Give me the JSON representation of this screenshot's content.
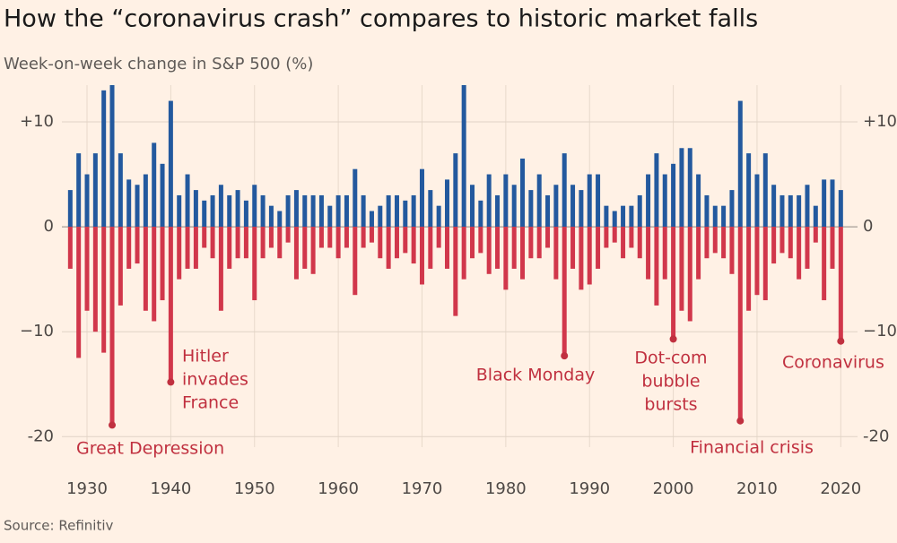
{
  "chart_data": {
    "type": "bar",
    "title": "How the “coronavirus crash” compares to historic market falls",
    "subtitle": "Week-on-week change in S&P 500 (%)",
    "source": "Source: Refinitiv",
    "x": [
      1928,
      1929,
      1930,
      1931,
      1932,
      1933,
      1934,
      1935,
      1936,
      1937,
      1938,
      1939,
      1940,
      1941,
      1942,
      1943,
      1944,
      1945,
      1946,
      1947,
      1948,
      1949,
      1950,
      1951,
      1952,
      1953,
      1954,
      1955,
      1956,
      1957,
      1958,
      1959,
      1960,
      1961,
      1962,
      1963,
      1964,
      1965,
      1966,
      1967,
      1968,
      1969,
      1970,
      1971,
      1972,
      1973,
      1974,
      1975,
      1976,
      1977,
      1978,
      1979,
      1980,
      1981,
      1982,
      1983,
      1984,
      1985,
      1986,
      1987,
      1988,
      1989,
      1990,
      1991,
      1992,
      1993,
      1994,
      1995,
      1996,
      1997,
      1998,
      1999,
      2000,
      2001,
      2002,
      2003,
      2004,
      2005,
      2006,
      2007,
      2008,
      2009,
      2010,
      2011,
      2012,
      2013,
      2014,
      2015,
      2016,
      2017,
      2018,
      2019,
      2020
    ],
    "series": [
      {
        "color": "#23599e",
        "values": [
          3.5,
          7,
          5,
          7,
          13,
          13.5,
          7,
          4.5,
          4,
          5,
          8,
          6,
          12,
          3,
          5,
          3.5,
          2.5,
          3,
          4,
          3,
          3.5,
          2.5,
          4,
          3,
          2,
          1.5,
          3,
          3.5,
          3,
          3,
          3,
          2,
          3,
          3,
          5.5,
          3,
          1.5,
          2,
          3,
          3,
          2.5,
          3,
          5.5,
          3.5,
          2,
          4.5,
          7,
          13.5,
          4,
          2.5,
          5,
          3,
          5,
          4,
          6.5,
          3.5,
          5,
          3,
          4,
          7,
          4,
          3.5,
          5,
          5,
          2,
          1.5,
          2,
          2,
          3,
          5,
          7,
          5,
          6,
          7.5,
          7.5,
          5,
          3,
          2,
          2,
          3.5,
          12,
          7,
          5,
          7,
          4,
          3,
          3,
          3,
          4,
          2,
          4.5,
          4.5,
          3.5
        ]
      },
      {
        "color": "#d1374b",
        "values": [
          -4,
          -12.5,
          -8,
          -10,
          -12,
          -18.9,
          -7.5,
          -4,
          -3.5,
          -8,
          -9,
          -7,
          -14.8,
          -5,
          -4,
          -4,
          -2,
          -3,
          -8,
          -4,
          -3,
          -3,
          -7,
          -3,
          -2,
          -3,
          -1.5,
          -5,
          -4,
          -4.5,
          -2,
          -2,
          -3,
          -2,
          -6.5,
          -2,
          -1.5,
          -3,
          -4,
          -3,
          -2.5,
          -3.5,
          -5.5,
          -4,
          -2,
          -4,
          -8.5,
          -5,
          -3,
          -2.5,
          -4.5,
          -4,
          -6,
          -4,
          -5,
          -3,
          -3,
          -2,
          -5,
          -12.3,
          -4,
          -6,
          -5.5,
          -4,
          -2,
          -1.5,
          -3,
          -2,
          -3,
          -5,
          -7.5,
          -5,
          -10.7,
          -8,
          -9,
          -5,
          -3,
          -2.5,
          -3,
          -4.5,
          -18.5,
          -8,
          -6.5,
          -7,
          -3.5,
          -2.5,
          -3,
          -5,
          -4,
          -1.5,
          -7,
          -4,
          -10.9
        ]
      }
    ],
    "annotations": [
      {
        "text": [
          "Great Depression"
        ],
        "x": 1933,
        "y": -18.9
      },
      {
        "text": [
          "Hitler",
          "invades",
          "France"
        ],
        "x": 1940,
        "y": -14.8
      },
      {
        "text": [
          "Black Monday"
        ],
        "x": 1987,
        "y": -12.3
      },
      {
        "text": [
          "Dot-com",
          "bubble",
          "bursts"
        ],
        "x": 2000,
        "y": -10.7
      },
      {
        "text": [
          "Financial crisis"
        ],
        "x": 2008,
        "y": -18.5
      },
      {
        "text": [
          "Coronavirus"
        ],
        "x": 2020,
        "y": -10.9
      }
    ],
    "xlim": [
      1927,
      2022
    ],
    "xticks": [
      1930,
      1940,
      1950,
      1960,
      1970,
      1980,
      1990,
      2000,
      2010,
      2020
    ],
    "ylim": [
      -21,
      13.5
    ],
    "yticks": [
      {
        "value": 10,
        "label": "+10"
      },
      0,
      {
        "value": -10,
        "label": "−10"
      },
      -20
    ],
    "grid": true
  }
}
